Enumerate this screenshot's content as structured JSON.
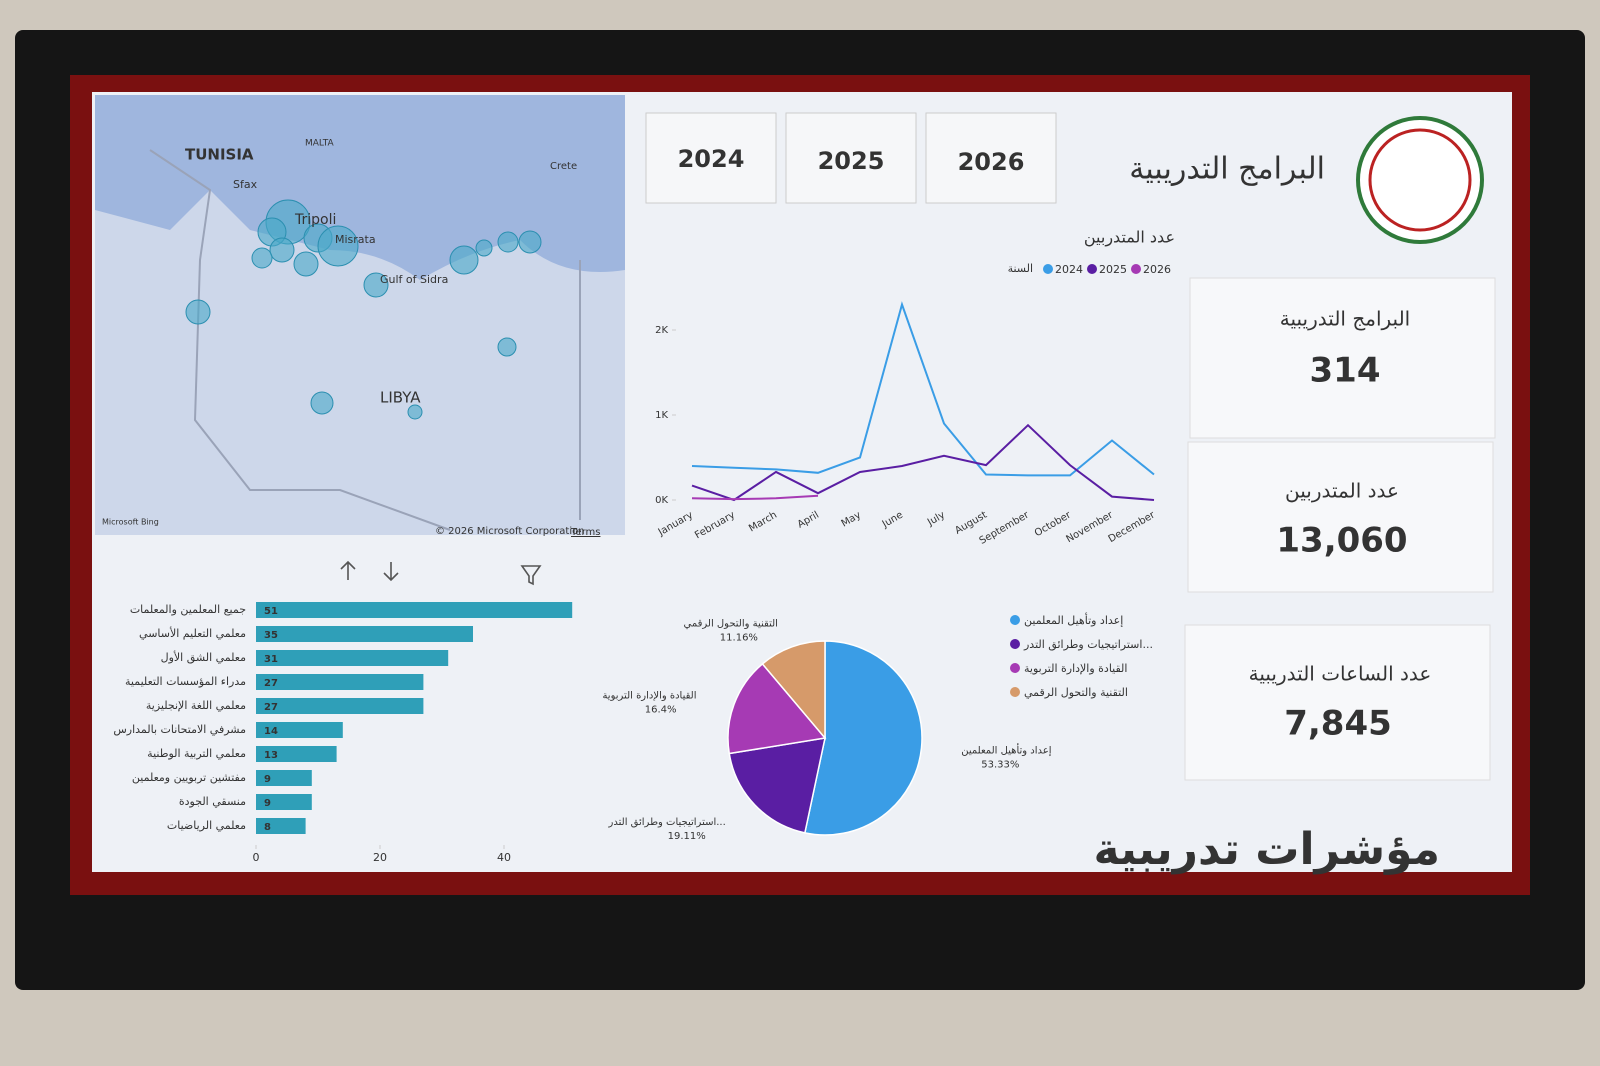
{
  "header": {
    "title": "البرامج التدريبية",
    "years": [
      "2024",
      "2025",
      "2026"
    ],
    "watermark": "مؤشرات تدريبية"
  },
  "kpis": [
    {
      "label": "البرامج التدريبية",
      "value": "314"
    },
    {
      "label": "عدد المتدربين",
      "value": "13,060"
    },
    {
      "label": "عدد الساعات التدريبية",
      "value": "7,845"
    }
  ],
  "map": {
    "labels": [
      "TUNISIA",
      "Sfax",
      "MALTA",
      "Crete",
      "Tripoli",
      "Misrata",
      "Gulf of Sidra",
      "LIBYA"
    ],
    "copyright": "© 2026 Microsoft Corporation",
    "terms": "Terms",
    "provider": "Microsoft Bing"
  },
  "chart_data": [
    {
      "type": "line",
      "title": "عدد المتدربين",
      "legend_title": "السنة",
      "categories": [
        "January",
        "February",
        "March",
        "April",
        "May",
        "June",
        "July",
        "August",
        "September",
        "October",
        "November",
        "December"
      ],
      "series": [
        {
          "name": "2024",
          "color": "#3a9de6",
          "values": [
            400,
            380,
            360,
            320,
            500,
            2300,
            900,
            300,
            290,
            290,
            700,
            300
          ]
        },
        {
          "name": "2025",
          "color": "#5a1ea3",
          "values": [
            170,
            0,
            330,
            80,
            330,
            400,
            520,
            410,
            880,
            410,
            40,
            0
          ]
        },
        {
          "name": "2026",
          "color": "#a63ab4",
          "values": [
            20,
            10,
            20,
            50,
            null,
            null,
            null,
            null,
            null,
            null,
            null,
            null
          ]
        }
      ],
      "ylim": [
        0,
        2400
      ],
      "yticks": [
        {
          "value": 0,
          "label": "0K"
        },
        {
          "value": 1000,
          "label": "1K"
        },
        {
          "value": 2000,
          "label": "2K"
        }
      ]
    },
    {
      "type": "bar",
      "orientation": "horizontal",
      "color": "#2f9fb8",
      "categories": [
        "جميع المعلمين والمعلمات",
        "معلمي التعليم الأساسي",
        "معلمي الشق الأول",
        "مدراء المؤسسات التعليمية",
        "معلمي اللغة الإنجليزية",
        "مشرفي الامتحانات بالمدارس",
        "معلمي التربية الوطنية",
        "مفتشين تربويين ومعلمين",
        "منسقي الجودة",
        "معلمي الرياضيات"
      ],
      "values": [
        51,
        35,
        31,
        27,
        27,
        14,
        13,
        9,
        9,
        8
      ],
      "xlim": [
        0,
        55
      ],
      "xticks": [
        0,
        20,
        40
      ]
    },
    {
      "type": "pie",
      "categories": [
        "إعداد وتأهيل المعلمين",
        "استراتيجيات وطرائق التدر...",
        "القيادة والإدارة التربوية",
        "التقنية والتحول الرقمي"
      ],
      "values": [
        53.33,
        19.11,
        16.4,
        11.16
      ],
      "value_labels": [
        "53.33%",
        "19.11%",
        "16.4%",
        "11.16%"
      ],
      "colors": [
        "#3a9de6",
        "#5a1ea3",
        "#a63ab4",
        "#d69a6a"
      ]
    }
  ]
}
